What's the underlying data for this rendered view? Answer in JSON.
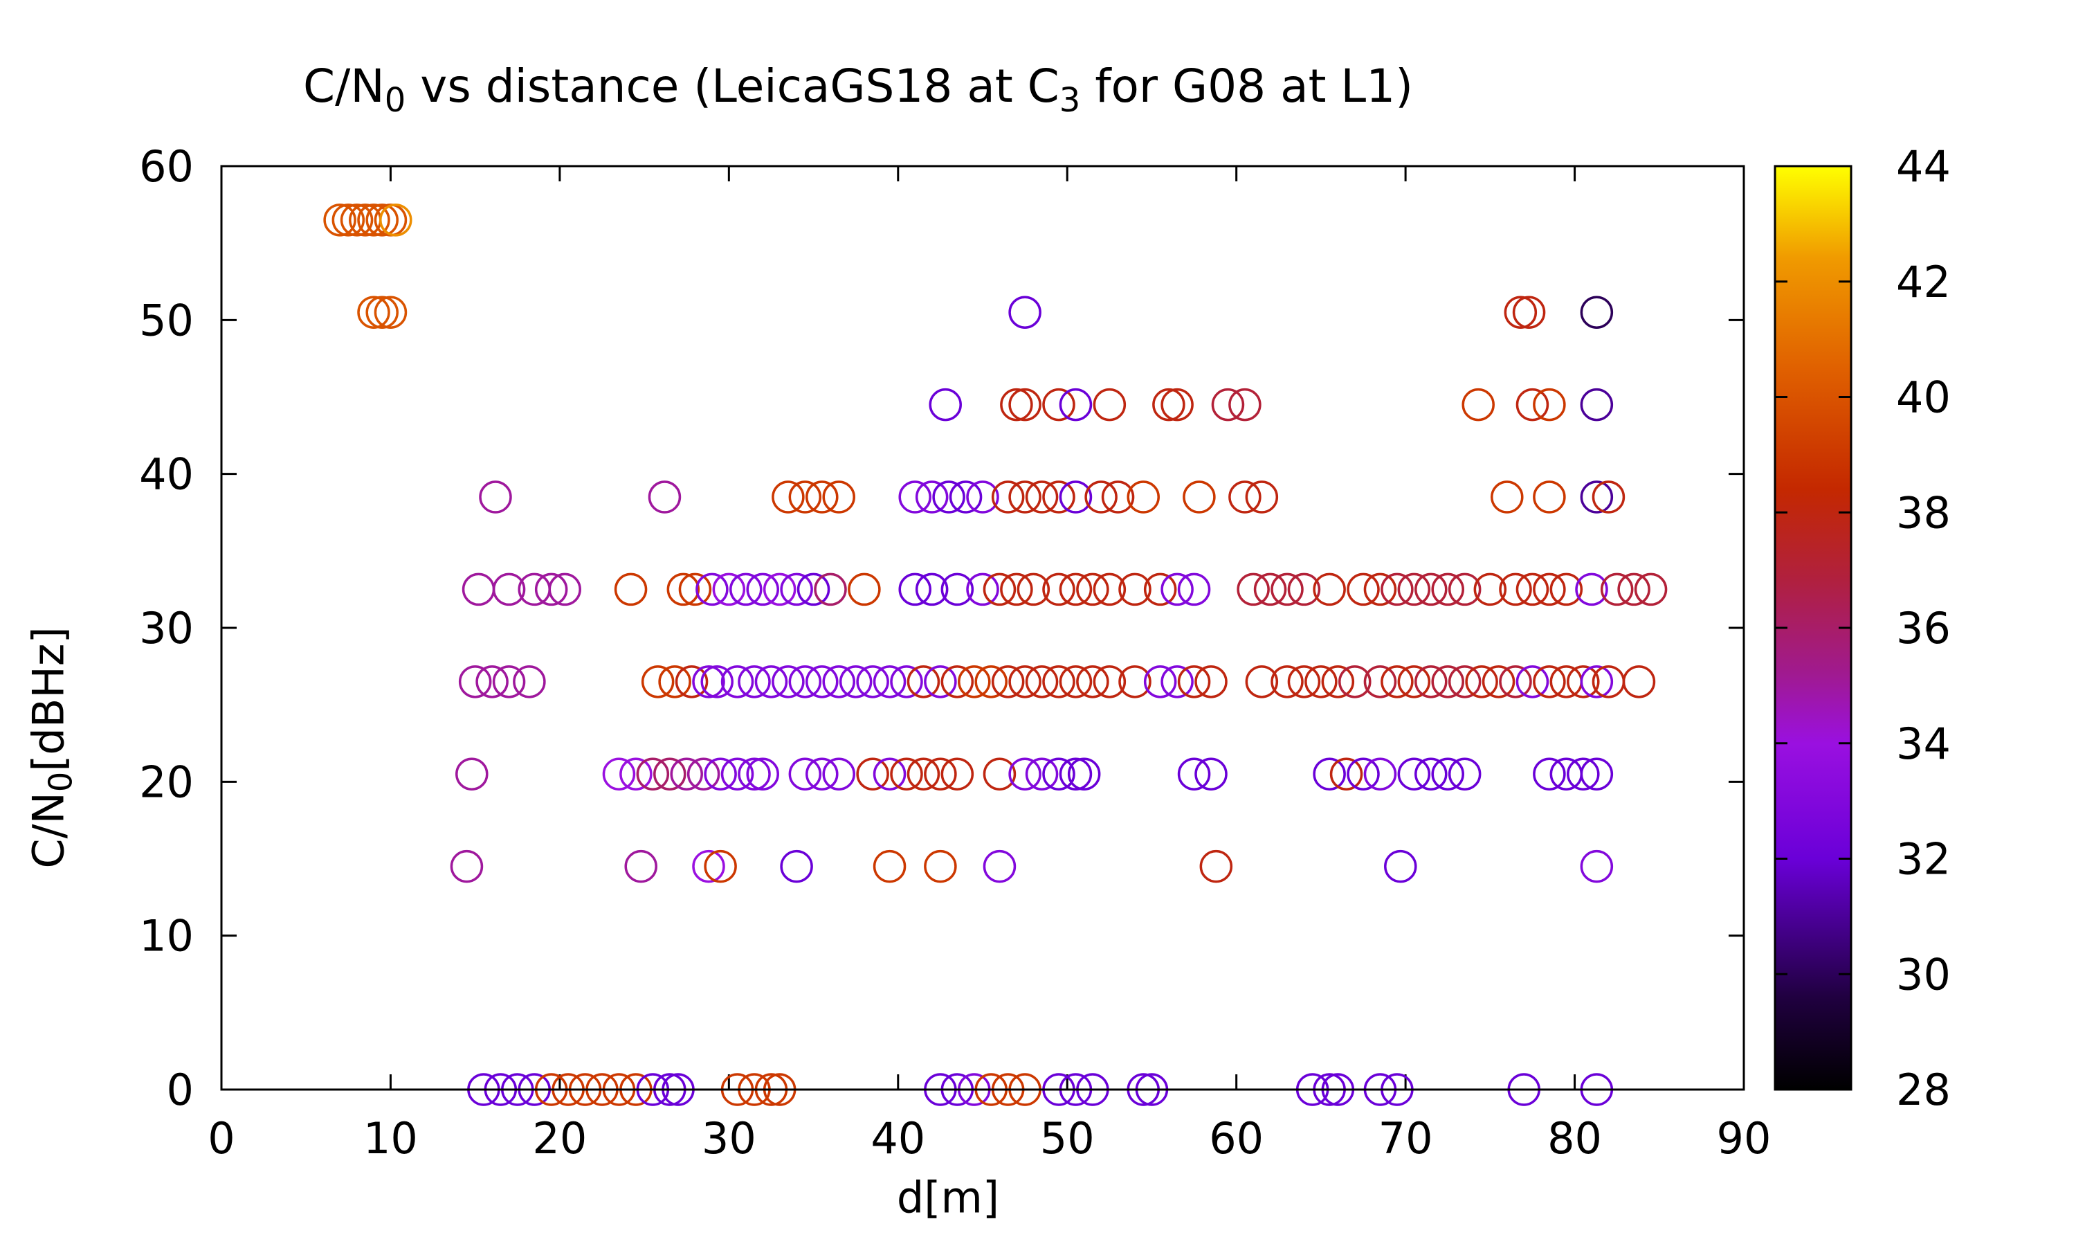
{
  "chart_data": {
    "type": "scatter",
    "title": {
      "prefix": "C/N",
      "sub1": "0",
      "middle": " vs distance (LeicaGS18 at C",
      "sub2": "3",
      "suffix": " for G08 at L1)"
    },
    "xlabel": "d[m]",
    "ylabel": {
      "prefix": "C/N",
      "sub": "0",
      "suffix": "[dBHz]"
    },
    "xlim": [
      0,
      90
    ],
    "ylim": [
      0,
      60
    ],
    "xticks": [
      "0",
      "10",
      "20",
      "30",
      "40",
      "50",
      "60",
      "70",
      "80",
      "90"
    ],
    "yticks": [
      "0",
      "10",
      "20",
      "30",
      "40",
      "50",
      "60"
    ],
    "colorbar": {
      "range": [
        28,
        44
      ],
      "ticks": [
        "28",
        "30",
        "32",
        "34",
        "36",
        "38",
        "40",
        "42",
        "44"
      ],
      "palette": "black-purple-red-orange-yellow"
    },
    "marker": "open-circle",
    "grid": false,
    "points": [
      [
        7.0,
        56.5,
        40
      ],
      [
        7.5,
        56.5,
        40
      ],
      [
        8.0,
        56.5,
        40
      ],
      [
        8.5,
        56.5,
        40
      ],
      [
        9.0,
        56.5,
        40
      ],
      [
        9.5,
        56.5,
        40
      ],
      [
        10.0,
        56.5,
        40
      ],
      [
        10.3,
        56.5,
        42
      ],
      [
        9.0,
        50.5,
        40
      ],
      [
        9.5,
        50.5,
        40
      ],
      [
        10.0,
        50.5,
        40
      ],
      [
        47.5,
        50.5,
        32
      ],
      [
        76.8,
        50.5,
        38
      ],
      [
        77.3,
        50.5,
        38
      ],
      [
        81.3,
        50.5,
        30
      ],
      [
        42.8,
        44.5,
        32
      ],
      [
        47.0,
        44.5,
        38
      ],
      [
        47.5,
        44.5,
        38
      ],
      [
        49.5,
        44.5,
        38
      ],
      [
        50.5,
        44.5,
        32
      ],
      [
        52.5,
        44.5,
        38
      ],
      [
        56.0,
        44.5,
        38
      ],
      [
        56.5,
        44.5,
        38
      ],
      [
        59.5,
        44.5,
        37
      ],
      [
        60.5,
        44.5,
        37
      ],
      [
        74.3,
        44.5,
        39
      ],
      [
        77.5,
        44.5,
        38
      ],
      [
        78.5,
        44.5,
        39
      ],
      [
        81.3,
        44.5,
        31
      ],
      [
        16.2,
        38.5,
        35
      ],
      [
        26.2,
        38.5,
        35
      ],
      [
        33.5,
        38.5,
        39
      ],
      [
        34.5,
        38.5,
        39
      ],
      [
        35.5,
        38.5,
        39
      ],
      [
        36.5,
        38.5,
        39
      ],
      [
        41.0,
        38.5,
        33
      ],
      [
        42.0,
        38.5,
        33
      ],
      [
        43.0,
        38.5,
        32
      ],
      [
        44.0,
        38.5,
        32
      ],
      [
        45.0,
        38.5,
        33
      ],
      [
        46.5,
        38.5,
        38
      ],
      [
        47.5,
        38.5,
        38
      ],
      [
        48.5,
        38.5,
        38
      ],
      [
        49.5,
        38.5,
        38
      ],
      [
        50.5,
        38.5,
        32
      ],
      [
        52.0,
        38.5,
        38
      ],
      [
        53.0,
        38.5,
        38
      ],
      [
        54.5,
        38.5,
        39
      ],
      [
        57.8,
        38.5,
        39
      ],
      [
        60.5,
        38.5,
        38
      ],
      [
        61.5,
        38.5,
        38
      ],
      [
        76.0,
        38.5,
        39
      ],
      [
        78.5,
        38.5,
        39
      ],
      [
        81.3,
        38.5,
        31
      ],
      [
        82.0,
        38.5,
        38
      ],
      [
        15.2,
        32.5,
        35
      ],
      [
        17.0,
        32.5,
        35
      ],
      [
        18.5,
        32.5,
        35
      ],
      [
        19.5,
        32.5,
        35
      ],
      [
        20.3,
        32.5,
        35
      ],
      [
        24.2,
        32.5,
        39
      ],
      [
        27.3,
        32.5,
        39
      ],
      [
        28.0,
        32.5,
        39
      ],
      [
        29.0,
        32.5,
        33
      ],
      [
        30.0,
        32.5,
        34
      ],
      [
        31.0,
        32.5,
        33
      ],
      [
        32.0,
        32.5,
        33
      ],
      [
        33.0,
        32.5,
        34
      ],
      [
        34.0,
        32.5,
        33
      ],
      [
        35.0,
        32.5,
        32
      ],
      [
        36.0,
        32.5,
        36
      ],
      [
        38.0,
        32.5,
        39
      ],
      [
        41.0,
        32.5,
        32
      ],
      [
        42.0,
        32.5,
        32
      ],
      [
        43.5,
        32.5,
        32
      ],
      [
        45.0,
        32.5,
        33
      ],
      [
        46.0,
        32.5,
        38
      ],
      [
        47.0,
        32.5,
        38
      ],
      [
        48.0,
        32.5,
        38
      ],
      [
        49.5,
        32.5,
        38
      ],
      [
        50.5,
        32.5,
        38
      ],
      [
        51.5,
        32.5,
        38
      ],
      [
        52.5,
        32.5,
        38
      ],
      [
        54.0,
        32.5,
        38
      ],
      [
        55.5,
        32.5,
        38
      ],
      [
        56.5,
        32.5,
        33
      ],
      [
        57.5,
        32.5,
        33
      ],
      [
        61.0,
        32.5,
        37
      ],
      [
        62.0,
        32.5,
        37
      ],
      [
        63.0,
        32.5,
        37
      ],
      [
        64.0,
        32.5,
        37
      ],
      [
        65.5,
        32.5,
        38
      ],
      [
        67.5,
        32.5,
        38
      ],
      [
        68.5,
        32.5,
        38
      ],
      [
        69.5,
        32.5,
        37
      ],
      [
        70.5,
        32.5,
        37
      ],
      [
        71.5,
        32.5,
        37
      ],
      [
        72.5,
        32.5,
        37
      ],
      [
        73.5,
        32.5,
        37
      ],
      [
        75.0,
        32.5,
        38
      ],
      [
        76.5,
        32.5,
        38
      ],
      [
        77.5,
        32.5,
        38
      ],
      [
        78.5,
        32.5,
        38
      ],
      [
        79.5,
        32.5,
        38
      ],
      [
        81.0,
        32.5,
        33
      ],
      [
        82.5,
        32.5,
        37
      ],
      [
        83.5,
        32.5,
        37
      ],
      [
        84.5,
        32.5,
        37
      ],
      [
        15.0,
        26.5,
        35
      ],
      [
        16.0,
        26.5,
        35
      ],
      [
        17.0,
        26.5,
        35
      ],
      [
        18.2,
        26.5,
        35
      ],
      [
        25.8,
        26.5,
        39
      ],
      [
        26.8,
        26.5,
        39
      ],
      [
        27.8,
        26.5,
        38
      ],
      [
        28.8,
        26.5,
        33
      ],
      [
        29.3,
        26.5,
        33
      ],
      [
        30.5,
        26.5,
        33
      ],
      [
        31.5,
        26.5,
        33
      ],
      [
        32.5,
        26.5,
        33
      ],
      [
        33.5,
        26.5,
        33
      ],
      [
        34.5,
        26.5,
        33
      ],
      [
        35.5,
        26.5,
        33
      ],
      [
        36.5,
        26.5,
        33
      ],
      [
        37.5,
        26.5,
        33
      ],
      [
        38.5,
        26.5,
        33
      ],
      [
        39.5,
        26.5,
        33
      ],
      [
        40.5,
        26.5,
        33
      ],
      [
        41.5,
        26.5,
        38
      ],
      [
        42.5,
        26.5,
        33
      ],
      [
        43.5,
        26.5,
        38
      ],
      [
        44.5,
        26.5,
        39
      ],
      [
        45.5,
        26.5,
        39
      ],
      [
        46.5,
        26.5,
        38
      ],
      [
        47.5,
        26.5,
        38
      ],
      [
        48.5,
        26.5,
        38
      ],
      [
        49.5,
        26.5,
        38
      ],
      [
        50.5,
        26.5,
        38
      ],
      [
        51.5,
        26.5,
        38
      ],
      [
        52.5,
        26.5,
        38
      ],
      [
        54.0,
        26.5,
        38
      ],
      [
        55.5,
        26.5,
        33
      ],
      [
        56.5,
        26.5,
        33
      ],
      [
        57.5,
        26.5,
        38
      ],
      [
        58.5,
        26.5,
        38
      ],
      [
        61.5,
        26.5,
        38
      ],
      [
        63.0,
        26.5,
        38
      ],
      [
        64.0,
        26.5,
        38
      ],
      [
        65.0,
        26.5,
        38
      ],
      [
        66.0,
        26.5,
        38
      ],
      [
        67.0,
        26.5,
        37
      ],
      [
        68.5,
        26.5,
        37
      ],
      [
        69.5,
        26.5,
        38
      ],
      [
        70.5,
        26.5,
        38
      ],
      [
        71.5,
        26.5,
        37
      ],
      [
        72.5,
        26.5,
        37
      ],
      [
        73.5,
        26.5,
        37
      ],
      [
        74.5,
        26.5,
        38
      ],
      [
        75.5,
        26.5,
        38
      ],
      [
        76.5,
        26.5,
        37
      ],
      [
        77.5,
        26.5,
        33
      ],
      [
        78.5,
        26.5,
        38
      ],
      [
        79.5,
        26.5,
        38
      ],
      [
        80.5,
        26.5,
        38
      ],
      [
        81.3,
        26.5,
        33
      ],
      [
        82.0,
        26.5,
        38
      ],
      [
        83.8,
        26.5,
        38
      ],
      [
        14.8,
        20.5,
        35
      ],
      [
        23.5,
        20.5,
        34
      ],
      [
        24.5,
        20.5,
        34
      ],
      [
        25.5,
        20.5,
        36
      ],
      [
        26.5,
        20.5,
        36
      ],
      [
        27.5,
        20.5,
        35
      ],
      [
        28.5,
        20.5,
        35
      ],
      [
        29.5,
        20.5,
        33
      ],
      [
        30.5,
        20.5,
        33
      ],
      [
        31.5,
        20.5,
        33
      ],
      [
        32.0,
        20.5,
        33
      ],
      [
        34.5,
        20.5,
        33
      ],
      [
        35.5,
        20.5,
        33
      ],
      [
        36.5,
        20.5,
        33
      ],
      [
        38.5,
        20.5,
        38
      ],
      [
        39.5,
        20.5,
        33
      ],
      [
        40.5,
        20.5,
        38
      ],
      [
        41.5,
        20.5,
        38
      ],
      [
        42.5,
        20.5,
        38
      ],
      [
        43.5,
        20.5,
        38
      ],
      [
        46.0,
        20.5,
        38
      ],
      [
        47.5,
        20.5,
        33
      ],
      [
        48.5,
        20.5,
        33
      ],
      [
        49.5,
        20.5,
        32
      ],
      [
        50.5,
        20.5,
        32
      ],
      [
        51.0,
        20.5,
        32
      ],
      [
        57.5,
        20.5,
        32
      ],
      [
        58.5,
        20.5,
        32
      ],
      [
        65.5,
        20.5,
        32
      ],
      [
        66.5,
        20.5,
        38
      ],
      [
        67.5,
        20.5,
        32
      ],
      [
        68.5,
        20.5,
        33
      ],
      [
        70.5,
        20.5,
        32
      ],
      [
        71.5,
        20.5,
        32
      ],
      [
        72.5,
        20.5,
        32
      ],
      [
        73.5,
        20.5,
        32
      ],
      [
        78.5,
        20.5,
        32
      ],
      [
        79.5,
        20.5,
        32
      ],
      [
        80.5,
        20.5,
        32
      ],
      [
        81.3,
        20.5,
        32
      ],
      [
        14.5,
        14.5,
        35
      ],
      [
        24.8,
        14.5,
        35
      ],
      [
        28.8,
        14.5,
        34
      ],
      [
        29.5,
        14.5,
        39
      ],
      [
        34.0,
        14.5,
        32
      ],
      [
        39.5,
        14.5,
        39
      ],
      [
        42.5,
        14.5,
        39
      ],
      [
        46.0,
        14.5,
        33
      ],
      [
        58.8,
        14.5,
        38
      ],
      [
        69.7,
        14.5,
        32
      ],
      [
        81.3,
        14.5,
        33
      ],
      [
        15.5,
        0,
        32
      ],
      [
        16.5,
        0,
        32
      ],
      [
        17.5,
        0,
        32
      ],
      [
        18.5,
        0,
        32
      ],
      [
        19.5,
        0,
        39
      ],
      [
        20.5,
        0,
        39
      ],
      [
        21.5,
        0,
        39
      ],
      [
        22.5,
        0,
        39
      ],
      [
        23.5,
        0,
        39
      ],
      [
        24.5,
        0,
        39
      ],
      [
        25.5,
        0,
        32
      ],
      [
        26.5,
        0,
        32
      ],
      [
        27.0,
        0,
        32
      ],
      [
        30.5,
        0,
        39
      ],
      [
        31.5,
        0,
        39
      ],
      [
        32.5,
        0,
        39
      ],
      [
        33.0,
        0,
        39
      ],
      [
        42.5,
        0,
        32
      ],
      [
        43.5,
        0,
        32
      ],
      [
        44.5,
        0,
        33
      ],
      [
        45.5,
        0,
        39
      ],
      [
        46.5,
        0,
        39
      ],
      [
        47.5,
        0,
        39
      ],
      [
        49.5,
        0,
        32
      ],
      [
        50.5,
        0,
        32
      ],
      [
        51.5,
        0,
        32
      ],
      [
        54.5,
        0,
        32
      ],
      [
        55.0,
        0,
        32
      ],
      [
        64.5,
        0,
        32
      ],
      [
        65.5,
        0,
        32
      ],
      [
        66.0,
        0,
        32
      ],
      [
        68.5,
        0,
        32
      ],
      [
        69.5,
        0,
        32
      ],
      [
        77.0,
        0,
        32
      ],
      [
        81.3,
        0,
        32
      ]
    ]
  }
}
